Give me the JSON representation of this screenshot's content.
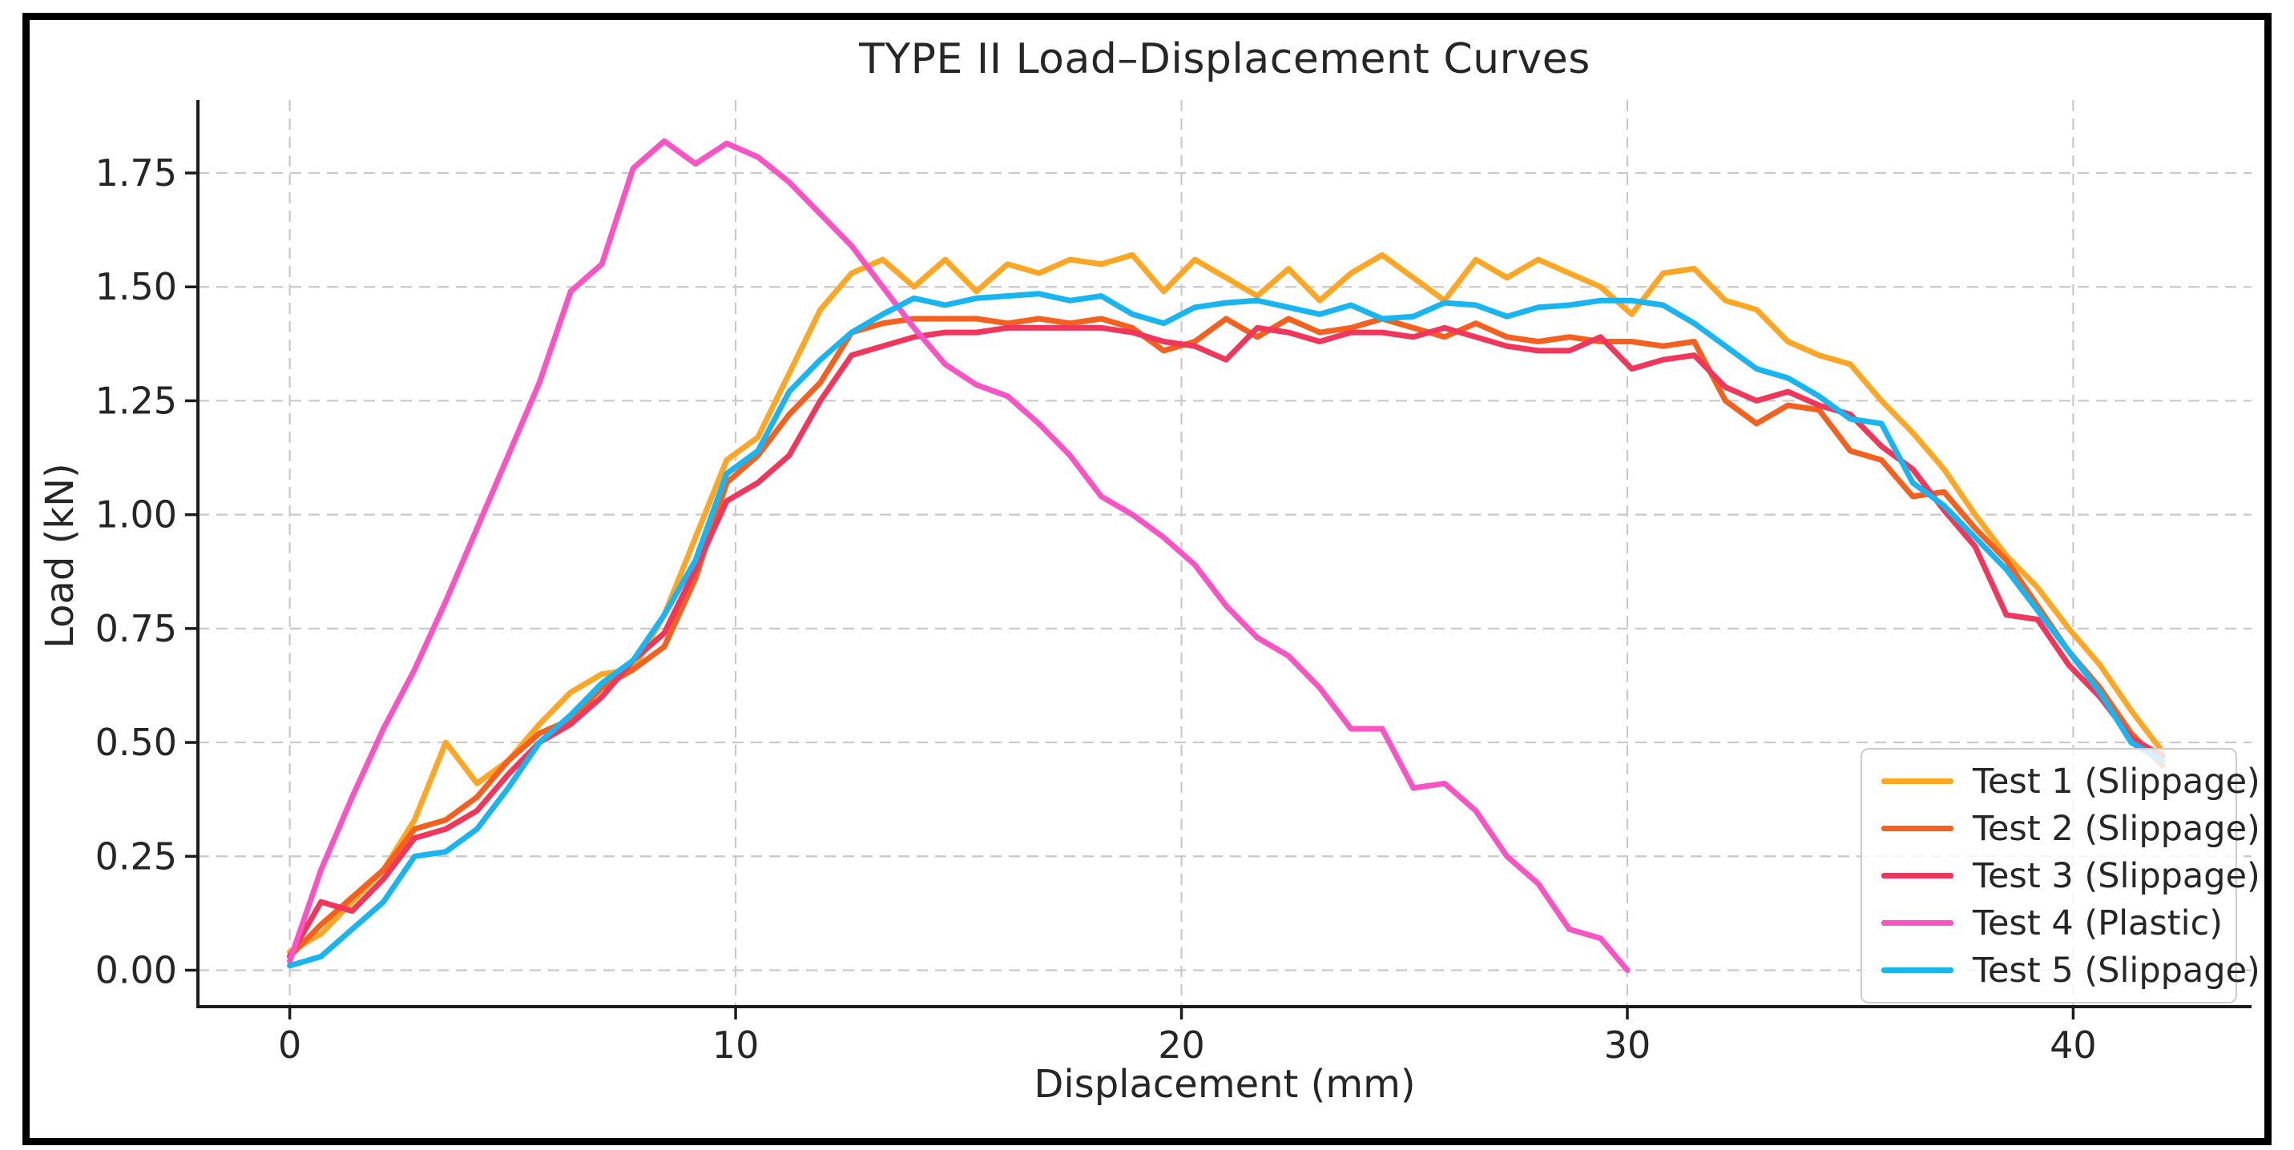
{
  "chart_data": {
    "type": "line",
    "title": "TYPE II Load–Displacement Curves",
    "xlabel": "Displacement (mm)",
    "ylabel": "Load (kN)",
    "xlim": [
      -2.06,
      44.0
    ],
    "ylim": [
      -0.08,
      1.91
    ],
    "grid": true,
    "grid_style": "dashed",
    "legend_position": "lower right",
    "x_ticks": [
      {
        "value": 0,
        "label": "0"
      },
      {
        "value": 10,
        "label": "10"
      },
      {
        "value": 20,
        "label": "20"
      },
      {
        "value": 30,
        "label": "30"
      },
      {
        "value": 40,
        "label": "40"
      }
    ],
    "y_ticks": [
      {
        "value": 0.0,
        "label": "0.00"
      },
      {
        "value": 0.25,
        "label": "0.25"
      },
      {
        "value": 0.5,
        "label": "0.50"
      },
      {
        "value": 0.75,
        "label": "0.75"
      },
      {
        "value": 1.0,
        "label": "1.00"
      },
      {
        "value": 1.25,
        "label": "1.25"
      },
      {
        "value": 1.5,
        "label": "1.50"
      },
      {
        "value": 1.75,
        "label": "1.75"
      }
    ],
    "series": [
      {
        "name": "Test 1 (Slippage)",
        "color": "#ffa724",
        "x": [
          0,
          0.7,
          1.4,
          2.1,
          2.8,
          3.5,
          4.2,
          4.9,
          5.6,
          6.3,
          7,
          7.7,
          8.4,
          9.1,
          9.8,
          10.5,
          11.2,
          11.9,
          12.6,
          13.3,
          14,
          14.7,
          15.4,
          16.1,
          16.8,
          17.5,
          18.2,
          18.9,
          19.6,
          20.3,
          21,
          21.7,
          22.4,
          23.1,
          23.8,
          24.5,
          25.2,
          25.9,
          26.6,
          27.3,
          28,
          28.7,
          29.4,
          30.1,
          30.8,
          31.5,
          32.2,
          32.9,
          33.6,
          34.3,
          35,
          35.7,
          36.4,
          37.1,
          37.8,
          38.5,
          39.2,
          39.9,
          40.6,
          41.3,
          42
        ],
        "y": [
          0.04,
          0.08,
          0.15,
          0.22,
          0.33,
          0.5,
          0.41,
          0.46,
          0.54,
          0.61,
          0.65,
          0.66,
          0.78,
          0.95,
          1.12,
          1.17,
          1.31,
          1.45,
          1.53,
          1.56,
          1.5,
          1.56,
          1.49,
          1.55,
          1.53,
          1.56,
          1.55,
          1.57,
          1.49,
          1.56,
          1.52,
          1.48,
          1.54,
          1.47,
          1.53,
          1.57,
          1.52,
          1.47,
          1.56,
          1.52,
          1.56,
          1.53,
          1.5,
          1.44,
          1.53,
          1.54,
          1.47,
          1.45,
          1.38,
          1.35,
          1.33,
          1.25,
          1.18,
          1.1,
          1.0,
          0.91,
          0.84,
          0.75,
          0.67,
          0.57,
          0.48
        ]
      },
      {
        "name": "Test 2 (Slippage)",
        "color": "#f4611e",
        "x": [
          0,
          0.7,
          1.4,
          2.1,
          2.8,
          3.5,
          4.2,
          4.9,
          5.6,
          6.3,
          7,
          7.7,
          8.4,
          9.1,
          9.8,
          10.5,
          11.2,
          11.9,
          12.6,
          13.3,
          14,
          14.7,
          15.4,
          16.1,
          16.8,
          17.5,
          18.2,
          18.9,
          19.6,
          20.3,
          21,
          21.7,
          22.4,
          23.1,
          23.8,
          24.5,
          25.2,
          25.9,
          26.6,
          27.3,
          28,
          28.7,
          29.4,
          30.1,
          30.8,
          31.5,
          32.2,
          32.9,
          33.6,
          34.3,
          35,
          35.7,
          36.4,
          37.1,
          37.8,
          38.5,
          39.2,
          39.9,
          40.6,
          41.3,
          42
        ],
        "y": [
          0.03,
          0.1,
          0.16,
          0.22,
          0.31,
          0.33,
          0.38,
          0.46,
          0.52,
          0.55,
          0.62,
          0.66,
          0.71,
          0.86,
          1.07,
          1.13,
          1.22,
          1.29,
          1.4,
          1.42,
          1.43,
          1.43,
          1.43,
          1.42,
          1.43,
          1.42,
          1.43,
          1.41,
          1.36,
          1.38,
          1.43,
          1.39,
          1.43,
          1.4,
          1.41,
          1.43,
          1.41,
          1.39,
          1.42,
          1.39,
          1.38,
          1.39,
          1.38,
          1.38,
          1.37,
          1.38,
          1.25,
          1.2,
          1.24,
          1.23,
          1.14,
          1.12,
          1.04,
          1.05,
          0.97,
          0.9,
          0.8,
          0.7,
          0.62,
          0.52,
          0.45
        ]
      },
      {
        "name": "Test 3 (Slippage)",
        "color": "#f1365c",
        "x": [
          0,
          0.7,
          1.4,
          2.1,
          2.8,
          3.5,
          4.2,
          4.9,
          5.6,
          6.3,
          7,
          7.7,
          8.4,
          9.1,
          9.8,
          10.5,
          11.2,
          11.9,
          12.6,
          13.3,
          14,
          14.7,
          15.4,
          16.1,
          16.8,
          17.5,
          18.2,
          18.9,
          19.6,
          20.3,
          21,
          21.7,
          22.4,
          23.1,
          23.8,
          24.5,
          25.2,
          25.9,
          26.6,
          27.3,
          28,
          28.7,
          29.4,
          30.1,
          30.8,
          31.5,
          32.2,
          32.9,
          33.6,
          34.3,
          35,
          35.7,
          36.4,
          37.1,
          37.8,
          38.5,
          39.2,
          39.9,
          40.6,
          41.3,
          42
        ],
        "y": [
          0.03,
          0.15,
          0.13,
          0.2,
          0.29,
          0.31,
          0.35,
          0.43,
          0.5,
          0.54,
          0.6,
          0.68,
          0.74,
          0.88,
          1.03,
          1.07,
          1.13,
          1.25,
          1.35,
          1.37,
          1.39,
          1.4,
          1.4,
          1.41,
          1.41,
          1.41,
          1.41,
          1.4,
          1.38,
          1.37,
          1.34,
          1.41,
          1.4,
          1.38,
          1.4,
          1.4,
          1.39,
          1.41,
          1.39,
          1.37,
          1.36,
          1.36,
          1.39,
          1.32,
          1.34,
          1.35,
          1.28,
          1.25,
          1.27,
          1.24,
          1.22,
          1.15,
          1.1,
          1.01,
          0.93,
          0.78,
          0.77,
          0.67,
          0.6,
          0.51,
          0.47
        ]
      },
      {
        "name": "Test 4 (Plastic)",
        "color": "#fa53c5",
        "x": [
          0,
          0.7,
          1.4,
          2.1,
          2.8,
          3.5,
          4.2,
          4.9,
          5.6,
          6.3,
          7,
          7.7,
          8.4,
          9.1,
          9.8,
          10.5,
          11.2,
          11.9,
          12.6,
          13.3,
          14,
          14.7,
          15.4,
          16.1,
          16.8,
          17.5,
          18.2,
          18.9,
          19.6,
          20.3,
          21,
          21.7,
          22.4,
          23.1,
          23.8,
          24.5,
          25.2,
          25.9,
          26.6,
          27.3,
          28,
          28.7,
          29.4,
          30
        ],
        "y": [
          0.02,
          0.22,
          0.38,
          0.53,
          0.66,
          0.81,
          0.97,
          1.13,
          1.29,
          1.49,
          1.55,
          1.76,
          1.82,
          1.77,
          1.815,
          1.785,
          1.73,
          1.66,
          1.59,
          1.5,
          1.41,
          1.33,
          1.285,
          1.26,
          1.2,
          1.13,
          1.04,
          1.0,
          0.95,
          0.89,
          0.8,
          0.73,
          0.69,
          0.62,
          0.53,
          0.53,
          0.4,
          0.41,
          0.35,
          0.25,
          0.19,
          0.09,
          0.07,
          0.0
        ]
      },
      {
        "name": "Test 5 (Slippage)",
        "color": "#18b5f0",
        "x": [
          0,
          0.7,
          1.4,
          2.1,
          2.8,
          3.5,
          4.2,
          4.9,
          5.6,
          6.3,
          7,
          7.7,
          8.4,
          9.1,
          9.8,
          10.5,
          11.2,
          11.9,
          12.6,
          13.3,
          14,
          14.7,
          15.4,
          16.1,
          16.8,
          17.5,
          18.2,
          18.9,
          19.6,
          20.3,
          21,
          21.7,
          22.4,
          23.1,
          23.8,
          24.5,
          25.2,
          25.9,
          26.6,
          27.3,
          28,
          28.7,
          29.4,
          30.1,
          30.8,
          31.5,
          32.2,
          32.9,
          33.6,
          34.3,
          35,
          35.7,
          36.4,
          37.1,
          37.8,
          38.5,
          39.2,
          39.9,
          40.6,
          41.3,
          42
        ],
        "y": [
          0.01,
          0.03,
          0.09,
          0.15,
          0.25,
          0.26,
          0.31,
          0.4,
          0.5,
          0.56,
          0.63,
          0.68,
          0.78,
          0.9,
          1.09,
          1.14,
          1.27,
          1.34,
          1.4,
          1.44,
          1.475,
          1.46,
          1.475,
          1.48,
          1.485,
          1.47,
          1.48,
          1.44,
          1.42,
          1.455,
          1.465,
          1.47,
          1.455,
          1.44,
          1.46,
          1.43,
          1.435,
          1.465,
          1.46,
          1.435,
          1.455,
          1.46,
          1.47,
          1.47,
          1.46,
          1.42,
          1.37,
          1.32,
          1.3,
          1.26,
          1.21,
          1.2,
          1.07,
          1.02,
          0.95,
          0.88,
          0.79,
          0.7,
          0.61,
          0.5,
          0.46
        ]
      }
    ],
    "colors": {
      "grid": "#c9c9c9",
      "spine": "#1c1c1c",
      "tick_label": "#262626",
      "background": "#ffffff"
    }
  }
}
